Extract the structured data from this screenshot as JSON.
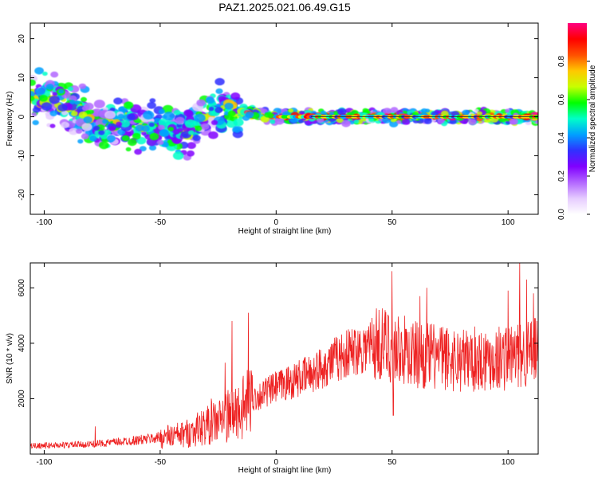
{
  "title": "PAZ1.2025.021.06.49.G15",
  "chart_data": [
    {
      "type": "heatmap",
      "xlabel": "Height of straight line (km)",
      "ylabel": "Frequency (Hz)",
      "xlim": [
        -106,
        113
      ],
      "ylim": [
        -25,
        24
      ],
      "xticks": [
        -100,
        -50,
        0,
        50,
        100
      ],
      "yticks": [
        -20,
        -10,
        0,
        10,
        20
      ],
      "colorbar": {
        "label": "Normalized spectral amplitude",
        "range": [
          0,
          1
        ],
        "ticks": [
          0.0,
          0.2,
          0.4,
          0.6,
          0.8
        ],
        "colormap": [
          "#ffffff",
          "#e6ccff",
          "#b266ff",
          "#8000ff",
          "#3030ff",
          "#00a0ff",
          "#00ffc8",
          "#00ff00",
          "#c8ff00",
          "#ffc800",
          "#ff5000",
          "#ff0000",
          "#ff0080"
        ]
      },
      "ridge": [
        {
          "x": -104,
          "y": 5
        },
        {
          "x": -95,
          "y": 4
        },
        {
          "x": -85,
          "y": 1
        },
        {
          "x": -75,
          "y": -2
        },
        {
          "x": -65,
          "y": -1
        },
        {
          "x": -55,
          "y": -3
        },
        {
          "x": -45,
          "y": -4
        },
        {
          "x": -35,
          "y": -3
        },
        {
          "x": -28,
          "y": 2
        },
        {
          "x": -20,
          "y": 3
        },
        {
          "x": -15,
          "y": 1
        },
        {
          "x": -5,
          "y": 0.5
        },
        {
          "x": 0,
          "y": 0
        },
        {
          "x": 113,
          "y": 0
        }
      ]
    },
    {
      "type": "line",
      "xlabel": "Height of straight line (km)",
      "ylabel": "SNR (10 * v/v)",
      "xlim": [
        -106,
        113
      ],
      "ylim": [
        0,
        6900
      ],
      "xticks": [
        -100,
        -50,
        0,
        50,
        100
      ],
      "yticks": [
        2000,
        4000,
        6000
      ],
      "color": "#ee2222",
      "envelope": [
        {
          "x": -106,
          "y": 300
        },
        {
          "x": -80,
          "y": 350
        },
        {
          "x": -60,
          "y": 500
        },
        {
          "x": -40,
          "y": 700
        },
        {
          "x": -25,
          "y": 1200
        },
        {
          "x": -15,
          "y": 1600
        },
        {
          "x": -10,
          "y": 2000
        },
        {
          "x": 0,
          "y": 2400
        },
        {
          "x": 15,
          "y": 2900
        },
        {
          "x": 25,
          "y": 3400
        },
        {
          "x": 35,
          "y": 3800
        },
        {
          "x": 45,
          "y": 4000
        },
        {
          "x": 60,
          "y": 3600
        },
        {
          "x": 80,
          "y": 3400
        },
        {
          "x": 100,
          "y": 3500
        },
        {
          "x": 113,
          "y": 3700
        }
      ],
      "peaks": [
        {
          "x": -78,
          "y": 1000
        },
        {
          "x": -28,
          "y": 2000
        },
        {
          "x": -22,
          "y": 3300
        },
        {
          "x": -19,
          "y": 4800
        },
        {
          "x": -12,
          "y": 5100
        },
        {
          "x": 50,
          "y": 6600
        },
        {
          "x": 50.5,
          "y": 1400
        },
        {
          "x": 62,
          "y": 5700
        },
        {
          "x": 65,
          "y": 6000
        },
        {
          "x": 100,
          "y": 5900
        },
        {
          "x": 105,
          "y": 6900
        },
        {
          "x": 108,
          "y": 6300
        },
        {
          "x": 111,
          "y": 5800
        }
      ]
    }
  ]
}
